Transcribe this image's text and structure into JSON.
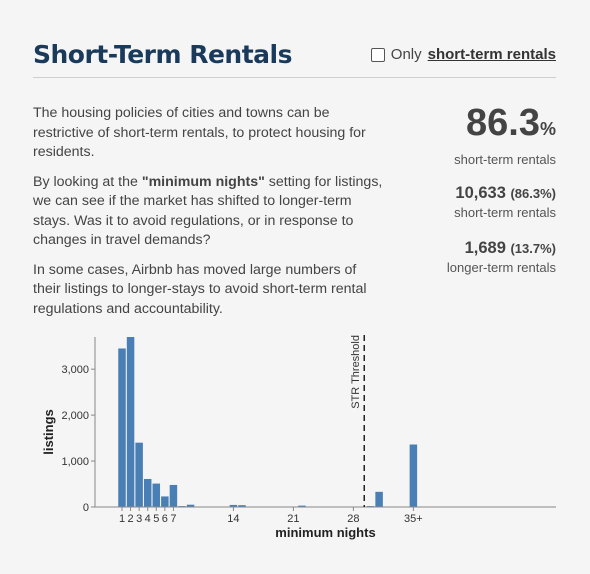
{
  "header": {
    "title": "Short-Term Rentals",
    "filter_prefix": "Only",
    "filter_link": "short-term rentals"
  },
  "description": [
    "The housing policies of cities and towns can be restrictive of short-term rentals, to protect housing for residents.",
    "By looking at the \"minimum nights\" setting for listings, we can see if the market has shifted to longer-term stays. Was it to avoid regulations, or in response to changes in travel demands?",
    "In some cases, Airbnb has moved large numbers of their listings to longer-stays to avoid short-term rental regulations and accountability."
  ],
  "desc_parts": {
    "p2_before": "By looking at the ",
    "p2_bold": "\"minimum nights\"",
    "p2_after": " setting for listings, we can see if the market has shifted to longer-term stays. Was it to avoid regulations, or in response to changes in travel demands?"
  },
  "stats": {
    "headline_value": "86.3",
    "headline_pct": "%",
    "headline_label": "short-term rentals",
    "short_term_count": "10,633",
    "short_term_pct": "(86.3%)",
    "short_term_label": "short-term rentals",
    "long_term_count": "1,689",
    "long_term_pct": "(13.7%)",
    "long_term_label": "longer-term rentals"
  },
  "chart_data": {
    "type": "bar",
    "xlabel": "minimum nights",
    "ylabel": "listings",
    "ylim": [
      0,
      3700
    ],
    "yticks": [
      0,
      1000,
      2000,
      3000
    ],
    "ytick_labels": [
      "0",
      "1,000",
      "2,000",
      "3,000"
    ],
    "xtick_labels": [
      "1",
      "2",
      "3",
      "4",
      "5",
      "6",
      "7",
      "14",
      "21",
      "28",
      "35+"
    ],
    "threshold": {
      "label": "STR Threshold",
      "after_night": 30
    },
    "bar_color": "#4a7fb5",
    "x": [
      1,
      2,
      3,
      4,
      5,
      6,
      7,
      8,
      9,
      10,
      11,
      12,
      13,
      14,
      15,
      16,
      17,
      18,
      19,
      20,
      21,
      22,
      23,
      24,
      25,
      26,
      27,
      28,
      29,
      30,
      31,
      32,
      33,
      34,
      35
    ],
    "x_display": [
      "1",
      "2",
      "3",
      "4",
      "5",
      "6",
      "7",
      "8",
      "9",
      "10",
      "11",
      "12",
      "13",
      "14",
      "15",
      "16",
      "17",
      "18",
      "19",
      "20",
      "21",
      "22",
      "23",
      "24",
      "25",
      "26",
      "27",
      "28",
      "29",
      "30",
      "31",
      "32",
      "33",
      "34",
      "35+"
    ],
    "values": [
      3450,
      3700,
      1400,
      610,
      510,
      230,
      480,
      20,
      50,
      5,
      5,
      5,
      5,
      45,
      40,
      5,
      5,
      5,
      5,
      5,
      5,
      30,
      5,
      5,
      5,
      5,
      5,
      5,
      5,
      20,
      330,
      5,
      5,
      5,
      1360
    ]
  }
}
